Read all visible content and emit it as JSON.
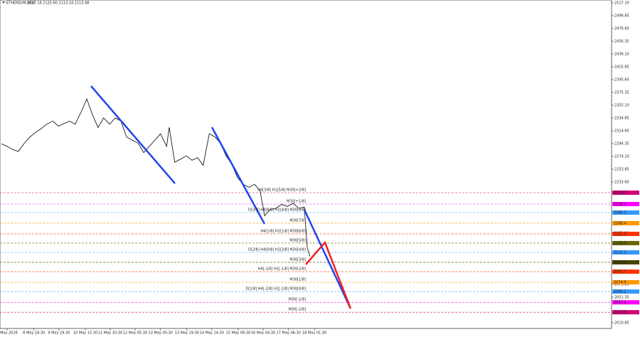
{
  "chart_data": {
    "type": "line",
    "title": "ETHEREUM,M30",
    "subtitle": "2117.18 2125.60 2113.24 2115.98",
    "xlim": [
      0,
      1204
    ],
    "xticks": [
      {
        "value": 14,
        "label": "7 May 2026"
      },
      {
        "value": 67,
        "label": "8 May 18:30"
      },
      {
        "value": 116,
        "label": "9 May 19:30"
      },
      {
        "value": 168,
        "label": "10 May 15:30"
      },
      {
        "value": 217,
        "label": "11 May 10:30"
      },
      {
        "value": 266,
        "label": "12 May 05:30"
      },
      {
        "value": 316,
        "label": "13 May 00:30"
      },
      {
        "value": 368,
        "label": "13 May 19:30"
      },
      {
        "value": 417,
        "label": "14 May 14:30"
      },
      {
        "value": 469,
        "label": "15 May 09:30"
      },
      {
        "value": 518,
        "label": "16 May 04:30"
      },
      {
        "value": 568,
        "label": "17 May 06:30"
      },
      {
        "value": 619,
        "label": "18 May 01:30"
      }
    ],
    "ylim": [
      2001.81,
      2521.6
    ],
    "yticks": [
      {
        "value": 2517.1,
        "label": "2517.10"
      },
      {
        "value": 2496.85,
        "label": "2496.85"
      },
      {
        "value": 2476.6,
        "label": "2476.60"
      },
      {
        "value": 2456.35,
        "label": "2456.35"
      },
      {
        "value": 2436.1,
        "label": "2436.10"
      },
      {
        "value": 2415.85,
        "label": "2415.85"
      },
      {
        "value": 2395.6,
        "label": "2395.60"
      },
      {
        "value": 2375.35,
        "label": "2375.35"
      },
      {
        "value": 2355.1,
        "label": "2355.10"
      },
      {
        "value": 2334.85,
        "label": "2334.85"
      },
      {
        "value": 2314.6,
        "label": "2314.60"
      },
      {
        "value": 2294.35,
        "label": "2294.35"
      },
      {
        "value": 2274.1,
        "label": "2274.10"
      },
      {
        "value": 2253.85,
        "label": "2253.85"
      },
      {
        "value": 2233.6,
        "label": "2233.60"
      },
      {
        "value": 2152.6,
        "label": "2152.60"
      },
      {
        "value": 2071.6,
        "label": "2071.60"
      },
      {
        "value": 2051.35,
        "label": "2051.35"
      },
      {
        "value": 2010.85,
        "label": "2010.85"
      }
    ],
    "series": [
      {
        "name": "ETHEREUM,M30",
        "color": "#000000",
        "x": [
          3,
          14,
          25,
          36,
          48,
          59,
          70,
          81,
          92,
          104,
          115,
          126,
          137,
          148,
          160,
          171,
          182,
          193,
          204,
          216,
          227,
          238,
          249,
          260,
          272,
          283,
          294,
          305,
          316,
          328,
          333,
          344,
          356,
          367,
          378,
          389,
          400,
          412,
          423,
          434,
          445,
          456,
          468,
          479,
          490,
          501,
          512,
          521,
          532,
          543,
          554,
          566,
          577,
          588,
          599,
          605,
          610
        ],
        "values": [
          2294,
          2290,
          2285,
          2282,
          2295,
          2305,
          2312,
          2318,
          2325,
          2330,
          2322,
          2326,
          2330,
          2325,
          2345,
          2365,
          2340,
          2320,
          2335,
          2325,
          2335,
          2330,
          2305,
          2300,
          2295,
          2280,
          2290,
          2300,
          2310,
          2290,
          2320,
          2265,
          2270,
          2275,
          2268,
          2272,
          2260,
          2310,
          2305,
          2295,
          2275,
          2262,
          2240,
          2230,
          2225,
          2230,
          2220,
          2180,
          2190,
          2192,
          2198,
          2195,
          2200,
          2192,
          2194,
          2130,
          2116
        ]
      }
    ],
    "levels": [
      {
        "label": "H4[3/8] H1[5/8] M30[+2/8]",
        "value": 2216.7,
        "color": "#cc0077"
      },
      {
        "label": "M30[+1/8]",
        "value": 2198.7,
        "color": "#ff00ff"
      },
      {
        "label": "D[3/8] H4[8/8] H1[4/8] M30[8/8]",
        "value": 2185.2,
        "color": "#3399ff"
      },
      {
        "label": "M30[7/8]",
        "value": 2168.4,
        "color": "#ff9900"
      },
      {
        "label": "H4[1/8] H1[1/8] M30[6/8]",
        "value": 2151.5,
        "color": "#ff3300"
      },
      {
        "label": "M30[5/8]",
        "value": 2136.9,
        "color": "#666600"
      },
      {
        "label": "D[2/8] H4[0/8] H1[3/8] M30[4/8]",
        "value": 2122.2,
        "color": "#3399ff"
      },
      {
        "label": "M30[3/8]",
        "value": 2106.5,
        "color": "#444400"
      },
      {
        "label": "H4[-1/8] H1[-1/8] M30[2/8]",
        "value": 2091.7,
        "color": "#ff3300"
      },
      {
        "label": "M30[1/8]",
        "value": 2074.9,
        "color": "#ff9900"
      },
      {
        "label": "D[1/8] H4[-2/8] H1[-2/8] M30[0/8]",
        "value": 2060.2,
        "color": "#3399ff"
      },
      {
        "label": "M30[-1/8]",
        "value": 2043.2,
        "color": "#ff00ff"
      },
      {
        "label": "M30[-2/8]",
        "value": 2027.5,
        "color": "#cc0077"
      }
    ]
  }
}
